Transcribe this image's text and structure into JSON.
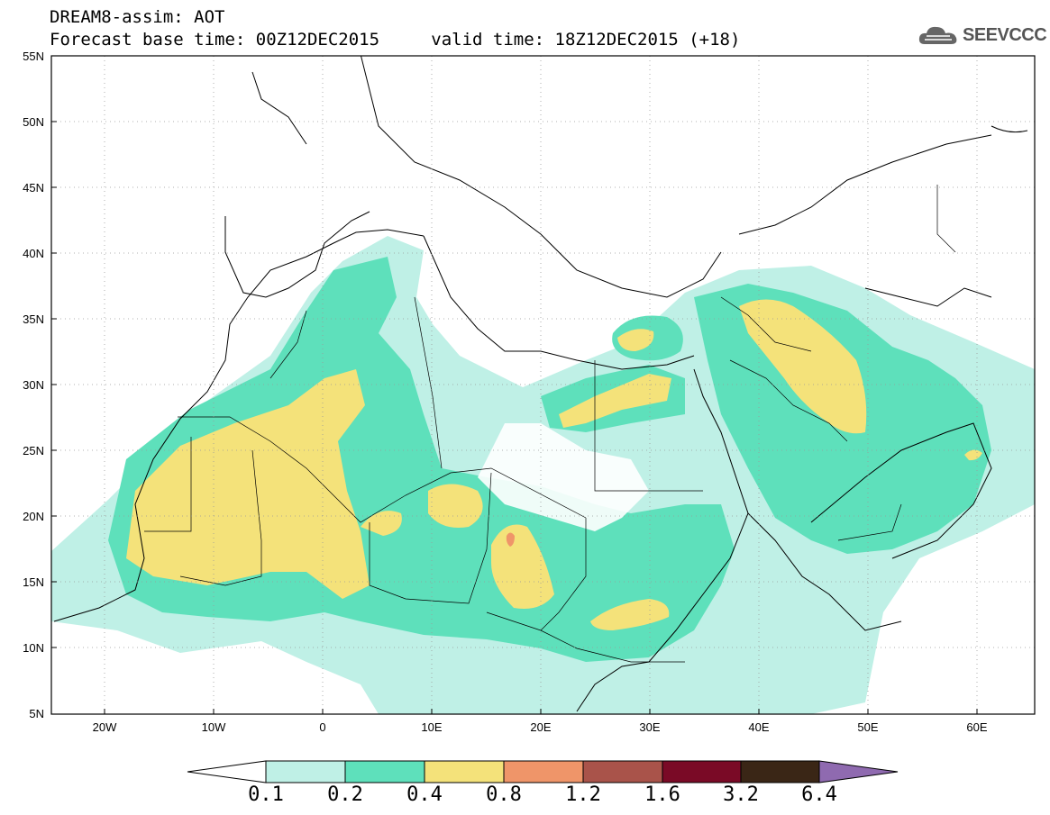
{
  "header": {
    "line1": "DREAM8-assim: AOT",
    "base_label": "Forecast base time: 00Z12DEC2015",
    "valid_label": "valid time: 18Z12DEC2015 (+18)"
  },
  "logo": {
    "text": "SEEVCCC",
    "icon": "cloud-logo-icon"
  },
  "axes": {
    "lat_labels": [
      "55N",
      "50N",
      "45N",
      "40N",
      "35N",
      "30N",
      "25N",
      "20N",
      "15N",
      "10N",
      "5N"
    ],
    "lon_labels": [
      "20W",
      "10W",
      "0",
      "10E",
      "20E",
      "30E",
      "40E",
      "50E",
      "60E"
    ]
  },
  "colorbar": {
    "labels": [
      "0.1",
      "0.2",
      "0.4",
      "0.8",
      "1.2",
      "1.6",
      "3.2",
      "6.4"
    ],
    "colors": [
      "#bff0e6",
      "#5ee0bb",
      "#f4e27a",
      "#ef9569",
      "#a9534a",
      "#7a0a26",
      "#3a2616",
      "#8f6ab0"
    ]
  }
}
